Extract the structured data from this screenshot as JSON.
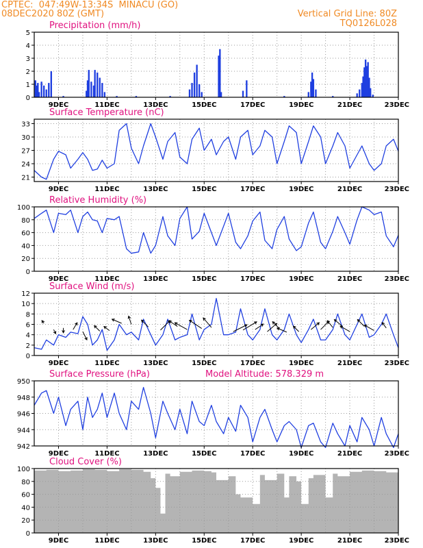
{
  "header": {
    "line1_left": "CPTEC:  047:49W-13:34S  MINACU (GO)",
    "line2_left": "08DEC2020 80Z (GMT)",
    "line1_right": "Vertical Grid Line: 80Z",
    "line2_right": "TQ0126L028"
  },
  "colors": {
    "header": "#f08a24",
    "title": "#e0117f",
    "series": "#1f3fe0",
    "bars": "#1f3fe0",
    "cloud": "#b4b4b4",
    "arrows": "#000000"
  },
  "chart_data": [
    {
      "type": "bar",
      "title": "Precipitation (mm/h)",
      "ylim": [
        0,
        5
      ],
      "yticks": [
        0,
        1,
        2,
        3,
        4,
        5
      ],
      "xticks": [
        "9DEC",
        "11DEC",
        "13DEC",
        "15DEC",
        "17DEC",
        "19DEC",
        "21DEC",
        "23DEC"
      ],
      "x_range": [
        8.0,
        23.0
      ],
      "events": [
        [
          8.05,
          1.3
        ],
        [
          8.1,
          0.9
        ],
        [
          8.15,
          1.1
        ],
        [
          8.2,
          0.4
        ],
        [
          8.3,
          1.2
        ],
        [
          8.4,
          0.9
        ],
        [
          8.5,
          0.6
        ],
        [
          8.6,
          1.1
        ],
        [
          8.7,
          2.0
        ],
        [
          9.2,
          0.1
        ],
        [
          10.15,
          0.5
        ],
        [
          10.2,
          1.3
        ],
        [
          10.25,
          2.1
        ],
        [
          10.35,
          1.2
        ],
        [
          10.45,
          0.9
        ],
        [
          10.5,
          2.1
        ],
        [
          10.6,
          1.9
        ],
        [
          10.7,
          1.5
        ],
        [
          10.8,
          1.1
        ],
        [
          10.9,
          0.4
        ],
        [
          11.4,
          0.1
        ],
        [
          12.2,
          0.1
        ],
        [
          13.6,
          0.1
        ],
        [
          14.4,
          0.6
        ],
        [
          14.5,
          1.1
        ],
        [
          14.6,
          1.9
        ],
        [
          14.7,
          2.5
        ],
        [
          14.8,
          1.0
        ],
        [
          14.9,
          0.4
        ],
        [
          15.6,
          3.2
        ],
        [
          15.65,
          3.7
        ],
        [
          15.7,
          0.4
        ],
        [
          16.6,
          0.5
        ],
        [
          16.75,
          1.3
        ],
        [
          18.3,
          0.1
        ],
        [
          19.3,
          0.4
        ],
        [
          19.4,
          1.2
        ],
        [
          19.45,
          1.9
        ],
        [
          19.5,
          1.4
        ],
        [
          19.6,
          0.6
        ],
        [
          20.3,
          0.1
        ],
        [
          21.3,
          0.3
        ],
        [
          21.4,
          0.6
        ],
        [
          21.5,
          1.1
        ],
        [
          21.55,
          1.6
        ],
        [
          21.6,
          2.3
        ],
        [
          21.65,
          2.9
        ],
        [
          21.7,
          2.4
        ],
        [
          21.75,
          2.7
        ],
        [
          21.8,
          1.5
        ],
        [
          21.85,
          0.7
        ],
        [
          21.95,
          0.2
        ]
      ]
    },
    {
      "type": "line",
      "title": "Surface Temperature (nC)",
      "ylim": [
        20,
        34
      ],
      "yticks": [
        21,
        24,
        27,
        30,
        33
      ],
      "xticks": [
        "9DEC",
        "11DEC",
        "13DEC",
        "15DEC",
        "17DEC",
        "19DEC",
        "21DEC",
        "23DEC"
      ],
      "x_range": [
        8.0,
        23.0
      ],
      "x": [
        8.0,
        8.3,
        8.5,
        8.8,
        9.0,
        9.3,
        9.5,
        9.8,
        10.0,
        10.2,
        10.4,
        10.6,
        10.8,
        11.0,
        11.3,
        11.5,
        11.8,
        12.0,
        12.3,
        12.5,
        12.8,
        13.0,
        13.3,
        13.5,
        13.8,
        14.0,
        14.3,
        14.5,
        14.8,
        15.0,
        15.3,
        15.5,
        15.8,
        16.0,
        16.3,
        16.5,
        16.8,
        17.0,
        17.3,
        17.5,
        17.8,
        18.0,
        18.3,
        18.5,
        18.8,
        19.0,
        19.3,
        19.5,
        19.8,
        20.0,
        20.3,
        20.5,
        20.8,
        21.0,
        21.3,
        21.5,
        21.8,
        22.0,
        22.3,
        22.5,
        22.8,
        23.0
      ],
      "y": [
        22.5,
        21,
        20.5,
        25,
        26.8,
        26,
        23,
        25,
        26.5,
        25,
        22.5,
        22.8,
        24.8,
        23,
        24,
        31.5,
        33,
        27.5,
        24,
        28,
        33,
        30,
        25,
        29,
        31,
        25.5,
        24,
        29.5,
        32,
        27,
        29.5,
        26,
        29,
        30,
        25,
        30,
        31.5,
        26,
        28,
        31.5,
        30,
        24,
        29,
        32.5,
        31,
        24,
        29,
        32.5,
        30,
        24,
        28,
        31,
        28,
        23,
        26,
        28,
        24,
        22.5,
        24,
        28,
        29.5,
        26.8
      ]
    },
    {
      "type": "line",
      "title": "Relative Humidity (%)",
      "ylim": [
        0,
        100
      ],
      "yticks": [
        0,
        20,
        40,
        60,
        80,
        100
      ],
      "xticks": [
        "9DEC",
        "11DEC",
        "13DEC",
        "15DEC",
        "17DEC",
        "19DEC",
        "21DEC",
        "23DEC"
      ],
      "x_range": [
        8.0,
        23.0
      ],
      "x": [
        8.0,
        8.3,
        8.5,
        8.8,
        9.0,
        9.3,
        9.5,
        9.8,
        10.0,
        10.2,
        10.4,
        10.6,
        10.8,
        11.0,
        11.3,
        11.5,
        11.8,
        12.0,
        12.3,
        12.5,
        12.8,
        13.0,
        13.3,
        13.5,
        13.8,
        14.0,
        14.3,
        14.5,
        14.8,
        15.0,
        15.3,
        15.5,
        15.8,
        16.0,
        16.3,
        16.5,
        16.8,
        17.0,
        17.3,
        17.5,
        17.8,
        18.0,
        18.3,
        18.5,
        18.8,
        19.0,
        19.3,
        19.5,
        19.8,
        20.0,
        20.3,
        20.5,
        20.8,
        21.0,
        21.3,
        21.5,
        21.8,
        22.0,
        22.3,
        22.5,
        22.8,
        23.0
      ],
      "y": [
        82,
        90,
        95,
        60,
        90,
        88,
        95,
        60,
        85,
        92,
        80,
        78,
        60,
        82,
        80,
        85,
        35,
        28,
        30,
        60,
        28,
        40,
        85,
        55,
        40,
        82,
        100,
        50,
        62,
        90,
        60,
        40,
        70,
        90,
        45,
        35,
        55,
        78,
        92,
        48,
        35,
        65,
        85,
        50,
        32,
        38,
        75,
        92,
        45,
        35,
        62,
        85,
        60,
        42,
        80,
        100,
        95,
        88,
        92,
        55,
        38,
        56
      ]
    },
    {
      "type": "line",
      "title": "Surface Wind (m/s)",
      "ylim": [
        0,
        12
      ],
      "yticks": [
        0,
        2,
        4,
        6,
        8,
        10,
        12
      ],
      "xticks": [
        "9DEC",
        "11DEC",
        "13DEC",
        "15DEC",
        "17DEC",
        "19DEC",
        "21DEC",
        "23DEC"
      ],
      "x_range": [
        8.0,
        23.0
      ],
      "x": [
        8.0,
        8.3,
        8.5,
        8.8,
        9.0,
        9.3,
        9.5,
        9.8,
        10.0,
        10.2,
        10.4,
        10.6,
        10.8,
        11.0,
        11.3,
        11.5,
        11.8,
        12.0,
        12.3,
        12.5,
        12.8,
        13.0,
        13.3,
        13.5,
        13.8,
        14.0,
        14.3,
        14.5,
        14.8,
        15.0,
        15.3,
        15.5,
        15.8,
        16.0,
        16.3,
        16.5,
        16.8,
        17.0,
        17.3,
        17.5,
        17.8,
        18.0,
        18.3,
        18.5,
        18.8,
        19.0,
        19.3,
        19.5,
        19.8,
        20.0,
        20.3,
        20.5,
        20.8,
        21.0,
        21.3,
        21.5,
        21.8,
        22.0,
        22.3,
        22.5,
        22.8,
        23.0
      ],
      "y": [
        1.5,
        1.2,
        3,
        2,
        4,
        3.5,
        4.5,
        4.2,
        7.5,
        6,
        2,
        3,
        5,
        1,
        3,
        6,
        4,
        4.5,
        3,
        7,
        4,
        2,
        4,
        7,
        3,
        3.5,
        4,
        8,
        3,
        5,
        6,
        11,
        4,
        4,
        4.5,
        9,
        4,
        3,
        5,
        9,
        4,
        3,
        5,
        8,
        4,
        2.5,
        5,
        7,
        3,
        3,
        5,
        8,
        4,
        3,
        6,
        8,
        3.5,
        4,
        6,
        8,
        4,
        1.5
      ],
      "arrows": [
        [
          8.4,
          6.2,
          -3,
          -4
        ],
        [
          8.8,
          5,
          3,
          6
        ],
        [
          9.2,
          5.3,
          0,
          7
        ],
        [
          9.6,
          5,
          6,
          -10
        ],
        [
          10.0,
          4.6,
          6,
          12
        ],
        [
          10.7,
          4.7,
          -8,
          -8
        ],
        [
          11.1,
          4.8,
          -8,
          -6
        ],
        [
          11.6,
          6.2,
          -14,
          -6
        ],
        [
          12.0,
          6.0,
          -4,
          -12
        ],
        [
          12.7,
          5.5,
          -10,
          -10
        ],
        [
          13.2,
          4.9,
          14,
          -14
        ],
        [
          13.9,
          5.6,
          -12,
          -8
        ],
        [
          14.3,
          5.0,
          -18,
          -10
        ],
        [
          14.9,
          5.2,
          -18,
          -12
        ],
        [
          15.3,
          5.4,
          -12,
          -14
        ],
        [
          16.2,
          4.6,
          20,
          -10
        ],
        [
          16.6,
          4.9,
          20,
          -12
        ],
        [
          17.1,
          5.0,
          12,
          -8
        ],
        [
          17.6,
          4.6,
          14,
          -12
        ],
        [
          18.1,
          5.2,
          -10,
          -10
        ],
        [
          18.4,
          4.5,
          -14,
          -6
        ],
        [
          18.9,
          4.6,
          -8,
          -8
        ],
        [
          19.4,
          5.0,
          12,
          -10
        ],
        [
          19.8,
          5.0,
          12,
          -12
        ],
        [
          20.3,
          5.4,
          -8,
          -10
        ],
        [
          20.7,
          5.6,
          -12,
          -10
        ],
        [
          21.0,
          4.6,
          -14,
          -8
        ],
        [
          21.6,
          5.6,
          -10,
          -10
        ],
        [
          22.0,
          4.8,
          -14,
          -8
        ],
        [
          22.5,
          5.3,
          -6,
          -8
        ]
      ]
    },
    {
      "type": "line",
      "title": "Surface Pressure (hPa)",
      "annotation": "Model Altitude: 578.329 m",
      "ylim": [
        942,
        950
      ],
      "yticks": [
        942,
        944,
        946,
        948,
        950
      ],
      "xticks": [
        "9DEC",
        "11DEC",
        "13DEC",
        "15DEC",
        "17DEC",
        "19DEC",
        "21DEC",
        "23DEC"
      ],
      "x_range": [
        8.0,
        23.0
      ],
      "x": [
        8.0,
        8.3,
        8.5,
        8.8,
        9.0,
        9.3,
        9.5,
        9.8,
        10.0,
        10.2,
        10.4,
        10.6,
        10.8,
        11.0,
        11.3,
        11.5,
        11.8,
        12.0,
        12.3,
        12.5,
        12.8,
        13.0,
        13.3,
        13.5,
        13.8,
        14.0,
        14.3,
        14.5,
        14.8,
        15.0,
        15.3,
        15.5,
        15.8,
        16.0,
        16.3,
        16.5,
        16.8,
        17.0,
        17.3,
        17.5,
        17.8,
        18.0,
        18.3,
        18.5,
        18.8,
        19.0,
        19.3,
        19.5,
        19.8,
        20.0,
        20.3,
        20.5,
        20.8,
        21.0,
        21.3,
        21.5,
        21.8,
        22.0,
        22.3,
        22.5,
        22.8,
        23.0
      ],
      "y": [
        947,
        948.5,
        948.8,
        946,
        948,
        944.5,
        946.5,
        947.5,
        944,
        948,
        945.5,
        946.5,
        948.5,
        945.5,
        948.5,
        946,
        944,
        947.5,
        946.5,
        949.2,
        946,
        943,
        947.5,
        946,
        944,
        946.5,
        943.5,
        947.5,
        945,
        944.5,
        947,
        945,
        943.5,
        945.5,
        943.8,
        947,
        945.5,
        942.5,
        945.5,
        946.5,
        944,
        942.5,
        944.5,
        945,
        944,
        941.8,
        944.5,
        944.8,
        942.5,
        941.8,
        944.8,
        943.5,
        942,
        944.5,
        942.5,
        945.5,
        944,
        942,
        945.5,
        943.5,
        941.8,
        943.5
      ]
    },
    {
      "type": "area",
      "title": "Cloud Cover (%)",
      "ylim": [
        0,
        100
      ],
      "yticks": [
        0,
        20,
        40,
        60,
        80,
        100
      ],
      "xticks": [
        "9DEC",
        "11DEC",
        "13DEC",
        "15DEC",
        "17DEC",
        "19DEC",
        "21DEC",
        "23DEC"
      ],
      "x_range": [
        8.0,
        23.0
      ],
      "x": [
        8.0,
        8.5,
        9.0,
        9.5,
        10.0,
        10.5,
        11.0,
        11.5,
        12.0,
        12.5,
        12.8,
        13.0,
        13.2,
        13.4,
        13.6,
        14.0,
        14.5,
        15.0,
        15.3,
        15.5,
        16.0,
        16.3,
        16.5,
        17.0,
        17.3,
        17.5,
        18.0,
        18.3,
        18.5,
        18.8,
        19.0,
        19.3,
        19.5,
        20.0,
        20.3,
        20.5,
        21.0,
        21.5,
        22.0,
        22.5,
        23.0
      ],
      "y": [
        97,
        98,
        96,
        97,
        99,
        98,
        96,
        99,
        98,
        95,
        85,
        70,
        30,
        92,
        88,
        95,
        97,
        96,
        94,
        82,
        88,
        60,
        55,
        45,
        90,
        82,
        92,
        55,
        88,
        80,
        45,
        85,
        90,
        55,
        92,
        88,
        95,
        97,
        96,
        94,
        92
      ]
    }
  ]
}
